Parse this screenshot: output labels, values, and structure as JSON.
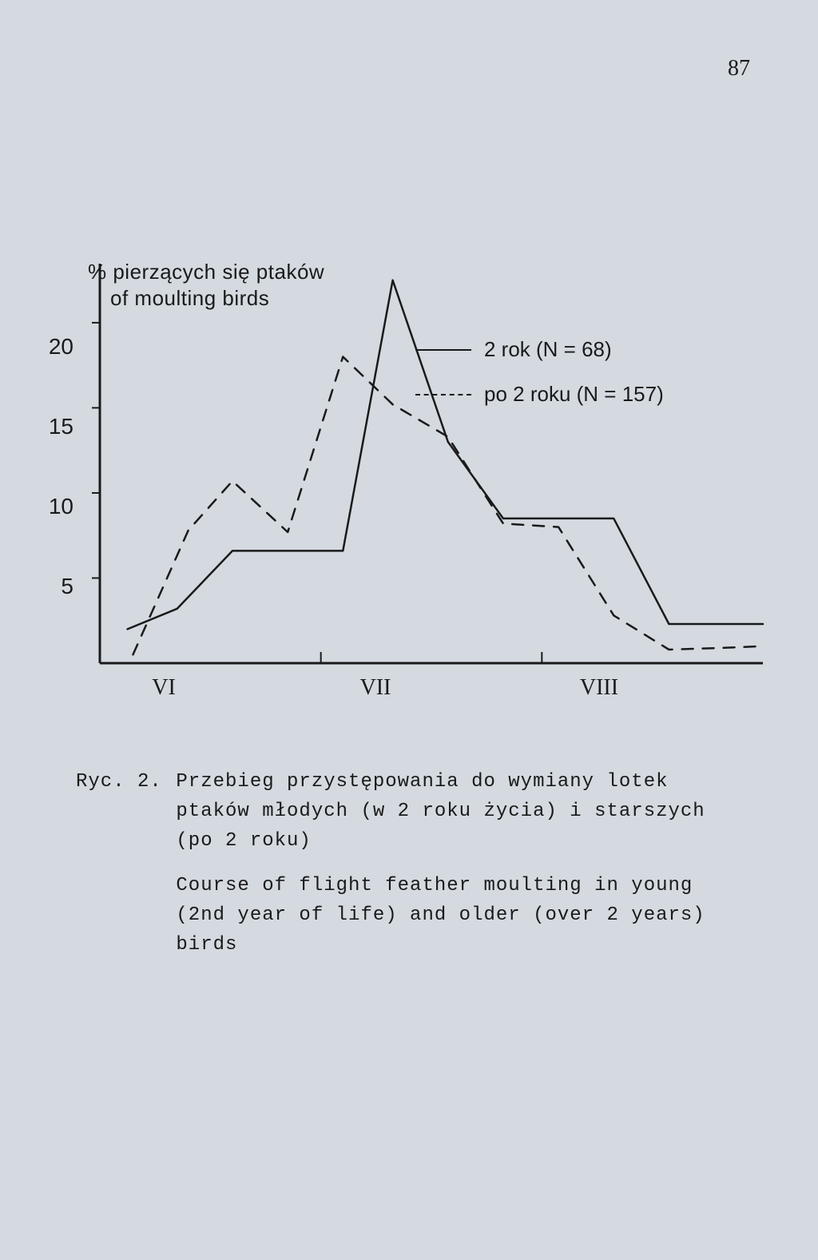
{
  "page_number": "87",
  "chart": {
    "type": "line",
    "y_axis_title_line1": "% pierzących się ptaków",
    "y_axis_title_line2": "of moulting birds",
    "ylim": [
      0,
      23
    ],
    "ytick_values": [
      5,
      10,
      15,
      20
    ],
    "ytick_labels": [
      "5",
      "10",
      "15",
      "20"
    ],
    "x_categories": [
      "VI",
      "VII",
      "VIII"
    ],
    "x_range": [
      0,
      12
    ],
    "x_tick_positions": [
      2,
      6,
      10
    ],
    "series": [
      {
        "name": "solid",
        "label": "2 rok (N = 68)",
        "dash": "solid",
        "color": "#1a1a1a",
        "line_width": 2.5,
        "x": [
          0.5,
          1.4,
          2.4,
          3.4,
          4.4,
          5.3,
          6.3,
          7.3,
          8.3,
          9.3,
          10.3,
          11.3,
          12.0
        ],
        "y": [
          2.0,
          3.2,
          6.6,
          6.6,
          6.6,
          22.5,
          13.0,
          8.5,
          8.5,
          8.5,
          2.3,
          2.3,
          2.3
        ]
      },
      {
        "name": "dashed",
        "label": "po 2 roku (N = 157)",
        "dash": "dashed",
        "color": "#1a1a1a",
        "line_width": 2.5,
        "x": [
          0.6,
          1.6,
          2.4,
          3.4,
          4.4,
          5.3,
          6.3,
          7.3,
          8.3,
          9.3,
          10.3,
          11.3,
          12.0
        ],
        "y": [
          0.5,
          7.8,
          10.7,
          7.7,
          18.0,
          15.2,
          13.3,
          8.2,
          8.0,
          2.8,
          0.8,
          0.9,
          1.0
        ]
      }
    ],
    "legend_items": [
      {
        "style": "solid",
        "text": "2 rok (N = 68)"
      },
      {
        "style": "dashed",
        "text": "po 2 roku (N = 157)"
      }
    ],
    "axis_color": "#1a1a1a",
    "axis_width": 3,
    "background_color": "#d4dae0"
  },
  "caption": {
    "label": "Ryc. 2.",
    "text_pl": "Przebieg przystępowania do wymiany lotek ptaków młodych (w 2 roku życia) i starszych (po 2 roku)",
    "text_en": "Course of flight feather moulting in young (2nd year of life) and older (over 2 years) birds"
  }
}
